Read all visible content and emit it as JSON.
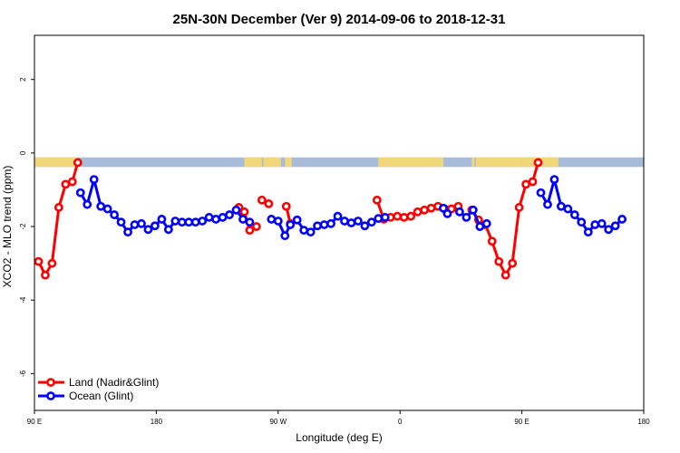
{
  "chart_data": {
    "type": "line",
    "title": "25N-30N December (Ver 9)   2014-09-06 to 2018-12-31",
    "xlabel": "Longitude (deg E)",
    "ylabel": "XCO2 - MLO trend (ppm)",
    "xlim": [
      90,
      540
    ],
    "ylim": [
      -7,
      3.2
    ],
    "x_ticks": [
      {
        "value": 90,
        "label": "90 E"
      },
      {
        "value": 180,
        "label": "180"
      },
      {
        "value": 270,
        "label": "90 W"
      },
      {
        "value": 360,
        "label": "0"
      },
      {
        "value": 450,
        "label": "90 E"
      },
      {
        "value": 540,
        "label": "180"
      }
    ],
    "y_ticks": [
      {
        "value": 2,
        "label": "2"
      },
      {
        "value": 0,
        "label": "0"
      },
      {
        "value": -2,
        "label": "-2"
      },
      {
        "value": -4,
        "label": "-4"
      },
      {
        "value": -6,
        "label": "-6"
      }
    ],
    "land_ocean_band": {
      "y_range": [
        -0.38,
        -0.12
      ],
      "land_color": "#f2d77a",
      "ocean_color": "#a7bcda",
      "land_segments": [
        [
          90,
          122
        ],
        [
          245,
          258
        ],
        [
          259,
          272
        ],
        [
          278,
          279
        ],
        [
          275,
          280
        ],
        [
          344,
          392
        ],
        [
          413,
          415
        ],
        [
          416,
          450
        ],
        [
          450,
          477
        ]
      ]
    },
    "series": [
      {
        "name": "Land (Nadir&Glint)",
        "color": "#ff0000",
        "points": [
          [
            93,
            -2.95
          ],
          [
            98,
            -3.32
          ],
          [
            103,
            -3.0
          ],
          [
            108,
            -1.48
          ],
          [
            113,
            -0.85
          ],
          [
            118,
            -0.78
          ],
          [
            122,
            -0.26
          ],
          [
            null,
            null
          ],
          [
            241,
            -1.48
          ],
          [
            245,
            -1.6
          ],
          [
            249,
            -2.1
          ],
          [
            254,
            -2.0
          ],
          [
            null,
            null
          ],
          [
            258,
            -1.28
          ],
          [
            263,
            -1.38
          ],
          [
            null,
            null
          ],
          [
            276,
            -1.45
          ],
          [
            279,
            -1.92
          ],
          [
            null,
            null
          ],
          [
            343,
            -1.28
          ],
          [
            348,
            -1.8
          ],
          [
            353,
            -1.75
          ],
          [
            358,
            -1.72
          ],
          [
            363,
            -1.75
          ],
          [
            368,
            -1.72
          ],
          [
            373,
            -1.6
          ],
          [
            378,
            -1.55
          ],
          [
            383,
            -1.5
          ],
          [
            388,
            -1.45
          ],
          [
            393,
            -1.52
          ],
          [
            398,
            -1.52
          ],
          [
            403,
            -1.45
          ],
          [
            null,
            null
          ],
          [
            413,
            -1.55
          ],
          [
            418,
            -1.82
          ],
          [
            423,
            -1.95
          ],
          [
            428,
            -2.4
          ],
          [
            433,
            -2.95
          ],
          [
            438,
            -3.32
          ],
          [
            443,
            -3.0
          ],
          [
            448,
            -1.48
          ],
          [
            453,
            -0.85
          ],
          [
            458,
            -0.78
          ],
          [
            462,
            -0.26
          ]
        ]
      },
      {
        "name": "Ocean (Glint)",
        "color": "#0000ff",
        "points": [
          [
            124,
            -1.08
          ],
          [
            129,
            -1.4
          ],
          [
            134,
            -0.72
          ],
          [
            139,
            -1.45
          ],
          [
            144,
            -1.52
          ],
          [
            149,
            -1.68
          ],
          [
            154,
            -1.88
          ],
          [
            159,
            -2.15
          ],
          [
            164,
            -1.95
          ],
          [
            169,
            -1.92
          ],
          [
            174,
            -2.08
          ],
          [
            179,
            -1.98
          ],
          [
            184,
            -1.8
          ],
          [
            189,
            -2.08
          ],
          [
            194,
            -1.85
          ],
          [
            199,
            -1.88
          ],
          [
            204,
            -1.88
          ],
          [
            209,
            -1.88
          ],
          [
            214,
            -1.85
          ],
          [
            219,
            -1.75
          ],
          [
            224,
            -1.8
          ],
          [
            229,
            -1.75
          ],
          [
            234,
            -1.68
          ],
          [
            239,
            -1.55
          ],
          [
            244,
            -1.8
          ],
          [
            249,
            -1.88
          ],
          [
            null,
            null
          ],
          [
            265,
            -1.8
          ],
          [
            270,
            -1.85
          ],
          [
            275,
            -2.25
          ],
          [
            279,
            -1.95
          ],
          [
            284,
            -1.82
          ],
          [
            289,
            -2.1
          ],
          [
            294,
            -2.15
          ],
          [
            299,
            -1.98
          ],
          [
            304,
            -1.95
          ],
          [
            309,
            -1.92
          ],
          [
            314,
            -1.72
          ],
          [
            319,
            -1.85
          ],
          [
            324,
            -1.9
          ],
          [
            329,
            -1.85
          ],
          [
            334,
            -1.98
          ],
          [
            339,
            -1.88
          ],
          [
            344,
            -1.78
          ],
          [
            349,
            -1.75
          ],
          [
            null,
            null
          ],
          [
            392,
            -1.5
          ],
          [
            395,
            -1.65
          ],
          [
            null,
            null
          ],
          [
            404,
            -1.6
          ],
          [
            409,
            -1.75
          ],
          [
            414,
            -1.55
          ],
          [
            419,
            -2.0
          ],
          [
            424,
            -1.92
          ],
          [
            null,
            null
          ],
          [
            464,
            -1.08
          ],
          [
            469,
            -1.4
          ],
          [
            474,
            -0.72
          ],
          [
            479,
            -1.45
          ],
          [
            484,
            -1.52
          ],
          [
            489,
            -1.68
          ],
          [
            494,
            -1.88
          ],
          [
            499,
            -2.15
          ],
          [
            504,
            -1.95
          ],
          [
            509,
            -1.92
          ],
          [
            514,
            -2.08
          ],
          [
            519,
            -1.98
          ],
          [
            524,
            -1.8
          ]
        ]
      }
    ],
    "legend": {
      "position": "bottom-left",
      "entries": [
        "Land (Nadir&Glint)",
        "Ocean (Glint)"
      ]
    }
  }
}
